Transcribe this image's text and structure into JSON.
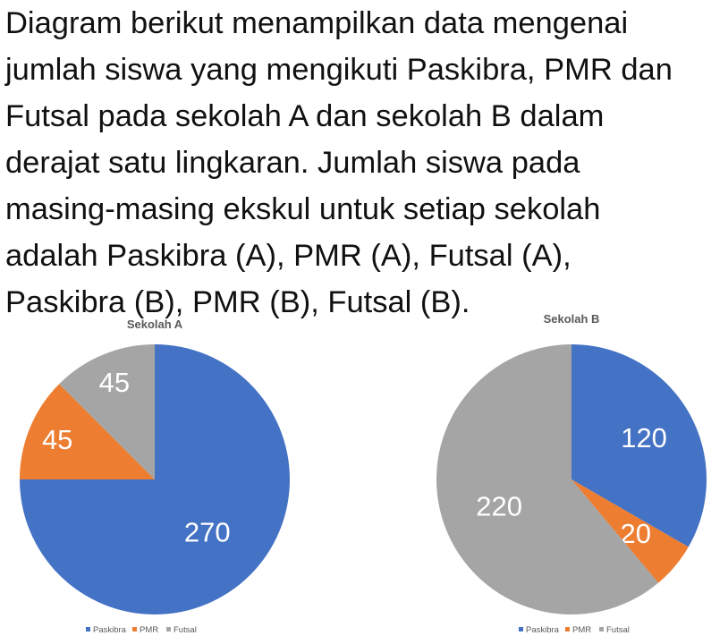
{
  "question_lines": [
    "Diagram berikut menampilkan data mengenai",
    "jumlah siswa yang mengikuti Paskibra, PMR dan",
    "Futsal pada sekolah A dan sekolah B dalam",
    "derajat satu lingkaran. Jumlah siswa pada",
    "masing-masing ekskul untuk setiap sekolah",
    "adalah Paskibra (A), PMR (A), Futsal (A),",
    "Paskibra (B), PMR (B), Futsal (B)."
  ],
  "colors": {
    "Paskibra": "#4472C4",
    "PMR": "#ED7D31",
    "Futsal": "#A5A5A5"
  },
  "chart_data": [
    {
      "type": "pie",
      "title": "Sekolah A",
      "categories": [
        "Paskibra",
        "PMR",
        "Futsal"
      ],
      "values": [
        270,
        45,
        45
      ],
      "legend": "bottom"
    },
    {
      "type": "pie",
      "title": "Sekolah B",
      "categories": [
        "Paskibra",
        "PMR",
        "Futsal"
      ],
      "values": [
        120,
        20,
        220
      ],
      "legend": "bottom"
    }
  ]
}
